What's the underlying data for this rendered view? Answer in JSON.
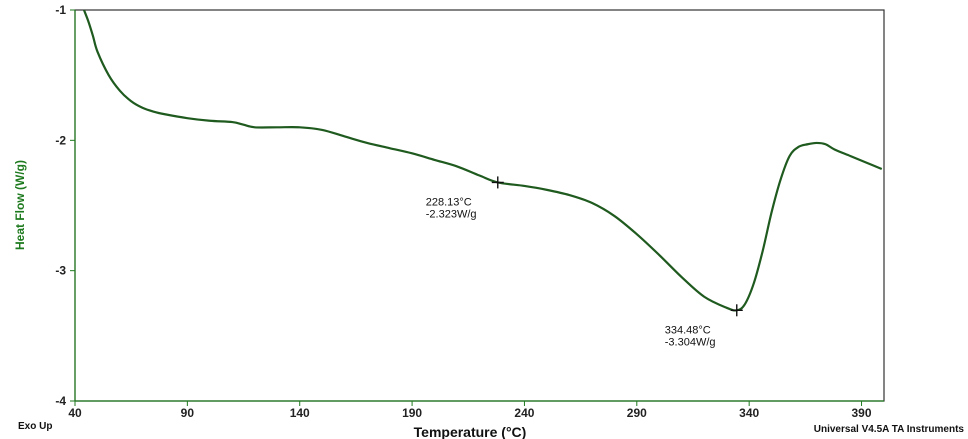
{
  "chart_data": {
    "type": "line",
    "title": "",
    "xlabel": "Temperature (°C)",
    "ylabel": "Heat Flow (W/g)",
    "xlim": [
      40,
      400
    ],
    "ylim": [
      -4,
      -1
    ],
    "x_ticks": [
      40,
      90,
      140,
      190,
      240,
      290,
      340,
      390
    ],
    "y_ticks": [
      -1,
      -2,
      -3,
      -4
    ],
    "x_tick_labels": [
      "40",
      "90",
      "140",
      "190",
      "240",
      "290",
      "340",
      "390"
    ],
    "y_tick_labels": [
      "-1",
      "-2",
      "-3",
      "-4"
    ],
    "grid": false,
    "colors": {
      "curve": "#1f5a1f",
      "ylabel": "#1e7a1e",
      "axis": "#1e7a1e",
      "frame": "#333333"
    },
    "series": [
      {
        "x": [
          44,
          46,
          48,
          50,
          55,
          60,
          65,
          70,
          75,
          80,
          90,
          100,
          110,
          115,
          120,
          130,
          140,
          150,
          160,
          170,
          180,
          190,
          200,
          210,
          220,
          228.13,
          240,
          250,
          260,
          270,
          280,
          290,
          300,
          310,
          320,
          330,
          334.48,
          338,
          342,
          346,
          350,
          354,
          358,
          362,
          366,
          370,
          374,
          378,
          385,
          392,
          399
        ],
        "y": [
          -1.0,
          -1.09,
          -1.2,
          -1.32,
          -1.5,
          -1.62,
          -1.7,
          -1.75,
          -1.78,
          -1.8,
          -1.83,
          -1.85,
          -1.86,
          -1.88,
          -1.9,
          -1.9,
          -1.9,
          -1.92,
          -1.97,
          -2.02,
          -2.06,
          -2.1,
          -2.15,
          -2.2,
          -2.27,
          -2.323,
          -2.35,
          -2.38,
          -2.42,
          -2.48,
          -2.58,
          -2.72,
          -2.88,
          -3.05,
          -3.2,
          -3.285,
          -3.304,
          -3.26,
          -3.1,
          -2.85,
          -2.55,
          -2.3,
          -2.12,
          -2.05,
          -2.03,
          -2.02,
          -2.03,
          -2.07,
          -2.12,
          -2.17,
          -2.22
        ]
      }
    ],
    "annotations": [
      {
        "x": 228.13,
        "y": -2.323,
        "text_temp": "228.13°C",
        "text_value": "-2.323W/g"
      },
      {
        "x": 334.48,
        "y": -3.304,
        "text_temp": "334.48°C",
        "text_value": "-3.304W/g"
      }
    ],
    "footer_left": "Exo Up",
    "footer_right": "Universal V4.5A TA Instruments"
  }
}
